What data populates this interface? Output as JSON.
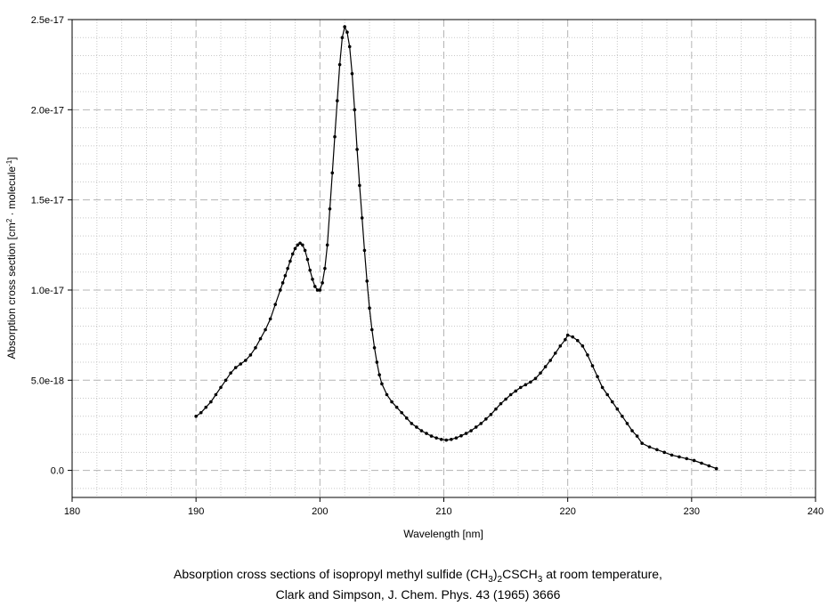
{
  "chart_data": {
    "type": "line",
    "xlabel": "Wavelength [nm]",
    "ylabel_parts": [
      "Absorption cross section [cm",
      "2",
      " · molecule",
      "-1",
      "]"
    ],
    "xlim": [
      180,
      240
    ],
    "ylim": [
      -1.5e-18,
      2.5e-17
    ],
    "x_ticks": [
      180,
      190,
      200,
      210,
      220,
      230,
      240
    ],
    "x_tick_labels": [
      "180",
      "190",
      "200",
      "210",
      "220",
      "230",
      "240"
    ],
    "y_ticks": [
      0,
      5e-18,
      1e-17,
      1.5e-17,
      2e-17,
      2.5e-17
    ],
    "y_tick_labels": [
      "0.0",
      "5.0e-18",
      "1.0e-17",
      "1.5e-17",
      "2.0e-17",
      "2.5e-17"
    ],
    "grid": true,
    "series": [
      {
        "color": "#000000",
        "x": [
          190,
          190.4,
          190.8,
          191.2,
          191.6,
          192,
          192.4,
          192.8,
          193.2,
          193.6,
          194,
          194.4,
          194.8,
          195.2,
          195.6,
          196,
          196.4,
          196.8,
          197.0,
          197.2,
          197.4,
          197.6,
          197.8,
          198.0,
          198.2,
          198.4,
          198.6,
          198.8,
          199.0,
          199.2,
          199.4,
          199.6,
          199.8,
          200.0,
          200.2,
          200.4,
          200.6,
          200.8,
          201.0,
          201.2,
          201.4,
          201.6,
          201.8,
          202.0,
          202.2,
          202.4,
          202.6,
          202.8,
          203.0,
          203.2,
          203.4,
          203.6,
          203.8,
          204.0,
          204.2,
          204.4,
          204.6,
          204.8,
          205.0,
          205.4,
          205.8,
          206.2,
          206.6,
          207.0,
          207.4,
          207.8,
          208.2,
          208.6,
          209.0,
          209.4,
          209.8,
          210.2,
          210.6,
          211.0,
          211.4,
          211.8,
          212.2,
          212.6,
          213.0,
          213.4,
          213.8,
          214.2,
          214.6,
          215.0,
          215.4,
          215.8,
          216.2,
          216.6,
          217.0,
          217.4,
          217.8,
          218.2,
          218.6,
          219.0,
          219.4,
          219.8,
          220.0,
          220.4,
          220.8,
          221.2,
          221.6,
          222.0,
          222.4,
          222.8,
          223.2,
          223.6,
          224.0,
          224.4,
          224.8,
          225.2,
          225.6,
          226.0,
          226.6,
          227.2,
          227.8,
          228.4,
          229.0,
          229.6,
          230.2,
          230.8,
          231.4,
          232.0
        ],
        "y": [
          3e-18,
          3.2e-18,
          3.5e-18,
          3.8e-18,
          4.2e-18,
          4.6e-18,
          5e-18,
          5.4e-18,
          5.7e-18,
          5.9e-18,
          6.1e-18,
          6.4e-18,
          6.8e-18,
          7.3e-18,
          7.8e-18,
          8.4e-18,
          9.2e-18,
          1e-17,
          1.04e-17,
          1.08e-17,
          1.12e-17,
          1.16e-17,
          1.2e-17,
          1.23e-17,
          1.25e-17,
          1.26e-17,
          1.25e-17,
          1.22e-17,
          1.17e-17,
          1.11e-17,
          1.06e-17,
          1.02e-17,
          1e-17,
          1e-17,
          1.04e-17,
          1.12e-17,
          1.25e-17,
          1.45e-17,
          1.65e-17,
          1.85e-17,
          2.05e-17,
          2.25e-17,
          2.4e-17,
          2.46e-17,
          2.43e-17,
          2.35e-17,
          2.2e-17,
          2e-17,
          1.78e-17,
          1.58e-17,
          1.4e-17,
          1.22e-17,
          1.05e-17,
          9e-18,
          7.8e-18,
          6.8e-18,
          6e-18,
          5.3e-18,
          4.8e-18,
          4.2e-18,
          3.8e-18,
          3.5e-18,
          3.2e-18,
          2.9e-18,
          2.6e-18,
          2.4e-18,
          2.2e-18,
          2.05e-18,
          1.9e-18,
          1.8e-18,
          1.72e-18,
          1.68e-18,
          1.72e-18,
          1.8e-18,
          1.92e-18,
          2.05e-18,
          2.2e-18,
          2.4e-18,
          2.6e-18,
          2.85e-18,
          3.1e-18,
          3.4e-18,
          3.7e-18,
          3.95e-18,
          4.2e-18,
          4.4e-18,
          4.6e-18,
          4.75e-18,
          4.9e-18,
          5.1e-18,
          5.4e-18,
          5.75e-18,
          6.1e-18,
          6.5e-18,
          6.9e-18,
          7.25e-18,
          7.5e-18,
          7.4e-18,
          7.2e-18,
          6.9e-18,
          6.4e-18,
          5.8e-18,
          5.2e-18,
          4.6e-18,
          4.2e-18,
          3.8e-18,
          3.4e-18,
          3e-18,
          2.6e-18,
          2.2e-18,
          1.9e-18,
          1.5e-18,
          1.3e-18,
          1.15e-18,
          1e-18,
          8.5e-19,
          7.5e-19,
          6.5e-19,
          5.5e-19,
          4e-19,
          2.5e-19,
          1e-19
        ]
      }
    ],
    "caption": {
      "line1_before": "Absorption cross sections of isopropyl methyl sulfide (CH",
      "line1_sub1": "3",
      "line1_mid1": ")",
      "line1_sub2": "2",
      "line1_mid2": "CSCH",
      "line1_sub3": "3",
      "line1_after": " at room temperature,",
      "line2": "Clark and Simpson, J. Chem. Phys. 43 (1965) 3666"
    }
  }
}
